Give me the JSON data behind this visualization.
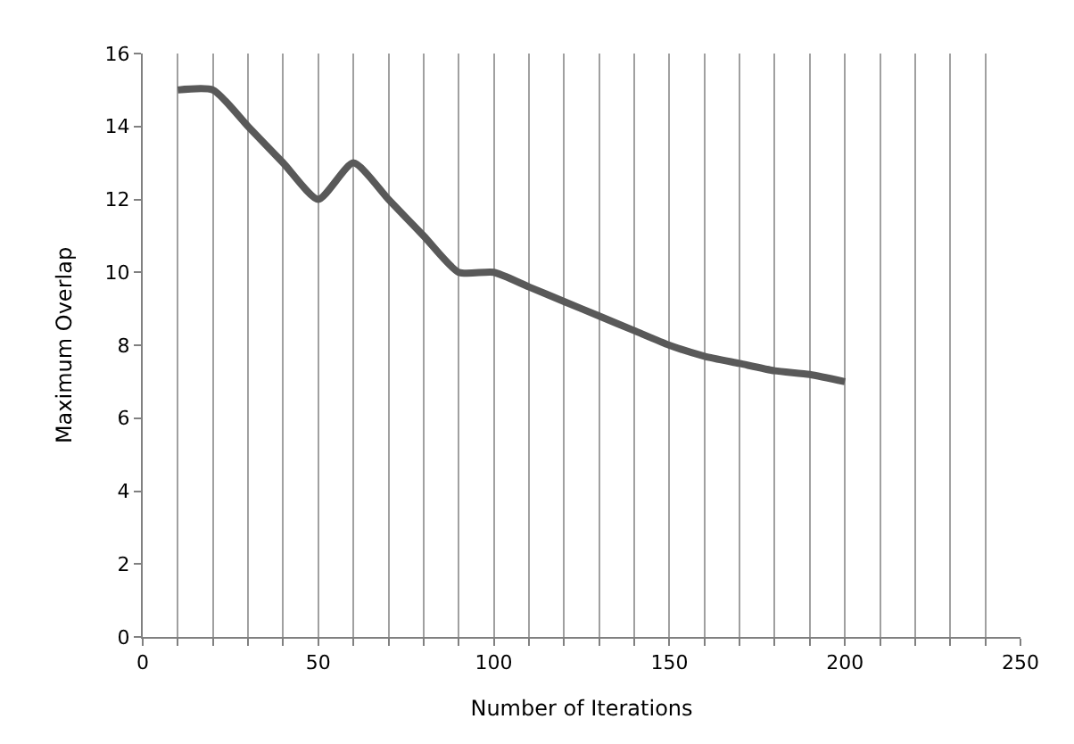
{
  "chart_data": {
    "type": "line",
    "xlabel": "Number of Iterations",
    "ylabel": "Maximum Overlap",
    "x": [
      10,
      20,
      30,
      40,
      50,
      60,
      70,
      80,
      90,
      100,
      110,
      120,
      130,
      140,
      150,
      160,
      170,
      180,
      190,
      200
    ],
    "series": [
      {
        "color": "#595959",
        "values": [
          15,
          15,
          14,
          13,
          12,
          13,
          12,
          11,
          10,
          10,
          9.6,
          9.2,
          8.8,
          8.4,
          8,
          7.7,
          7.5,
          7.3,
          7.2,
          7
        ]
      }
    ],
    "xlim": [
      0,
      250
    ],
    "ylim": [
      0,
      16
    ],
    "xticks": [
      0,
      {
        "value": 10,
        "label": null
      },
      {
        "value": 20,
        "label": null
      },
      {
        "value": 30,
        "label": null
      },
      {
        "value": 40,
        "label": null
      },
      50,
      {
        "value": 60,
        "label": null
      },
      {
        "value": 70,
        "label": null
      },
      {
        "value": 80,
        "label": null
      },
      {
        "value": 90,
        "label": null
      },
      100,
      {
        "value": 110,
        "label": null
      },
      {
        "value": 120,
        "label": null
      },
      {
        "value": 130,
        "label": null
      },
      {
        "value": 140,
        "label": null
      },
      150,
      {
        "value": 160,
        "label": null
      },
      {
        "value": 170,
        "label": null
      },
      {
        "value": 180,
        "label": null
      },
      {
        "value": 190,
        "label": null
      },
      200,
      {
        "value": 210,
        "label": null
      },
      {
        "value": 220,
        "label": null
      },
      {
        "value": 230,
        "label": null
      },
      {
        "value": 240,
        "label": null
      },
      250
    ],
    "yticks": [
      0,
      2,
      4,
      6,
      8,
      10,
      12,
      14,
      16
    ],
    "grid": "x",
    "legend": false,
    "marker": "none",
    "line_style": "solid"
  }
}
